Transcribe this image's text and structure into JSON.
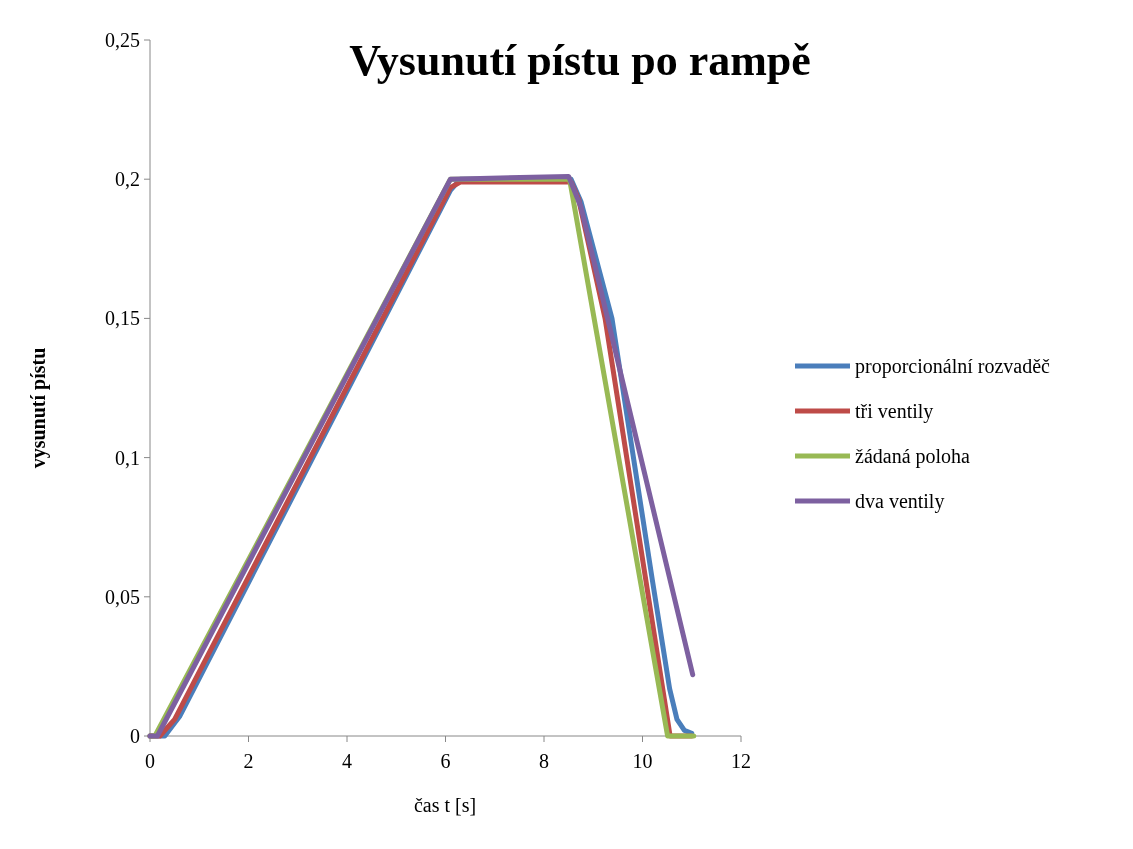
{
  "chart_data": {
    "type": "line",
    "title": "Vysunutí pístu po rampě",
    "xlabel": "čas t [s]",
    "ylabel": "vysunutí pístu",
    "xlim": [
      0,
      12
    ],
    "ylim": [
      0,
      0.25
    ],
    "xticks": [
      0,
      2,
      4,
      6,
      8,
      10,
      12
    ],
    "yticks": [
      {
        "value": 0,
        "label": "0"
      },
      {
        "value": 0.05,
        "label": "0,05"
      },
      {
        "value": 0.1,
        "label": "0,1"
      },
      {
        "value": 0.15,
        "label": "0,15"
      },
      {
        "value": 0.2,
        "label": "0,2"
      },
      {
        "value": 0.25,
        "label": "0,25"
      }
    ],
    "grid": false,
    "legend": "right",
    "marker": "none",
    "line_style": "solid",
    "series": [
      {
        "name": "proporcionální rozvaděč",
        "color": "#4a7ebb",
        "x": [
          0,
          0.3,
          0.6,
          6.1,
          6.3,
          8.55,
          8.75,
          9.38,
          10.2,
          10.55,
          10.7,
          10.85,
          11
        ],
        "values": [
          0,
          0,
          0.007,
          0.196,
          0.2,
          0.2,
          0.192,
          0.15,
          0.056,
          0.017,
          0.006,
          0.002,
          0.001
        ]
      },
      {
        "name": "tři ventily",
        "color": "#be4b48",
        "x": [
          0,
          0.2,
          0.5,
          6.1,
          6.3,
          8.55,
          8.7,
          9.24,
          10.56,
          11
        ],
        "values": [
          0,
          0,
          0.006,
          0.197,
          0.199,
          0.199,
          0.193,
          0.15,
          0,
          0
        ]
      },
      {
        "name": "žádaná poloha",
        "color": "#98b954",
        "x": [
          0,
          0.1,
          6.1,
          8.52,
          10.51,
          11.04
        ],
        "values": [
          0,
          0,
          0.2,
          0.2,
          0,
          0
        ]
      },
      {
        "name": "dva ventily",
        "color": "#7d60a0",
        "x": [
          0,
          0.15,
          6.1,
          8.5,
          8.75,
          11.02
        ],
        "values": [
          0,
          0,
          0.2,
          0.201,
          0.19,
          0.022
        ]
      }
    ]
  }
}
